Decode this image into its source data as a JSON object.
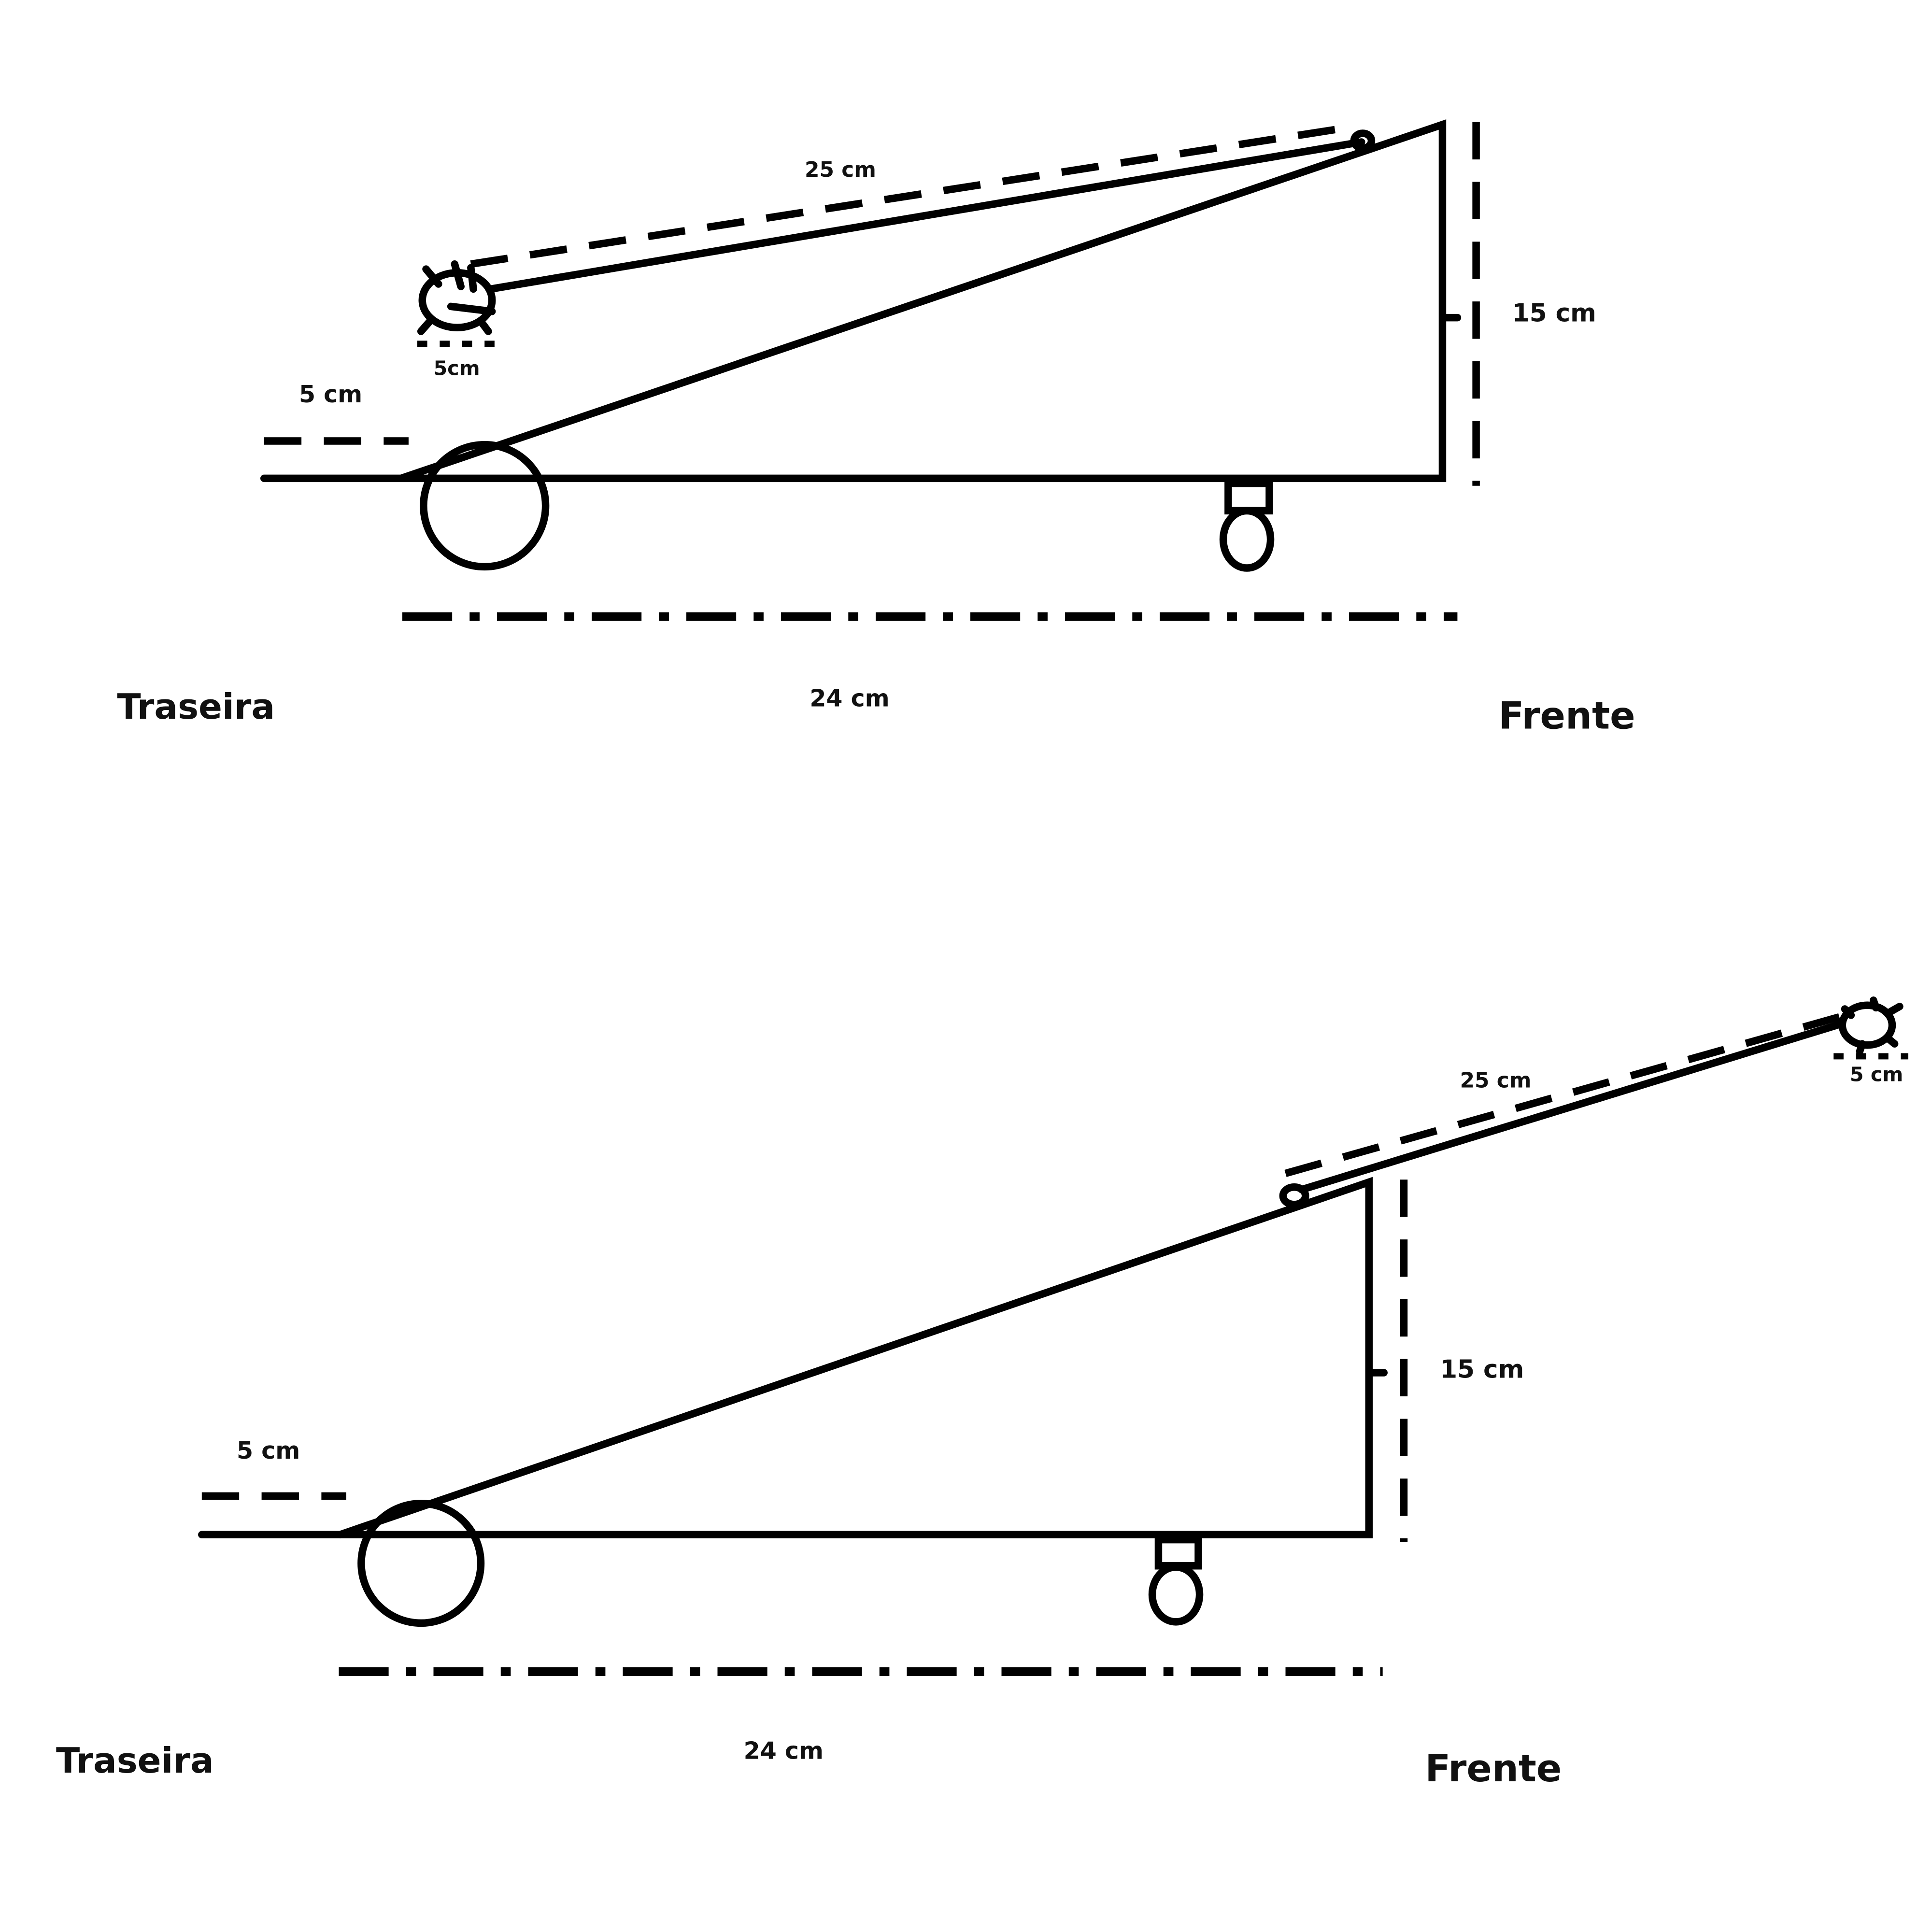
{
  "panels": [
    {
      "arm_length_label": "25 cm",
      "projectile_size_label": "5cm",
      "rear_height_label": "5 cm",
      "height_label": "15 cm",
      "base_length_label": "24 cm",
      "rear_label": "Traseira",
      "front_label": "Frente"
    },
    {
      "arm_length_label": "25 cm",
      "projectile_size_label": "5 cm",
      "rear_height_label": "5 cm",
      "height_label": "15 cm",
      "base_length_label": "24 cm",
      "rear_label": "Traseira",
      "front_label": "Frente"
    }
  ]
}
